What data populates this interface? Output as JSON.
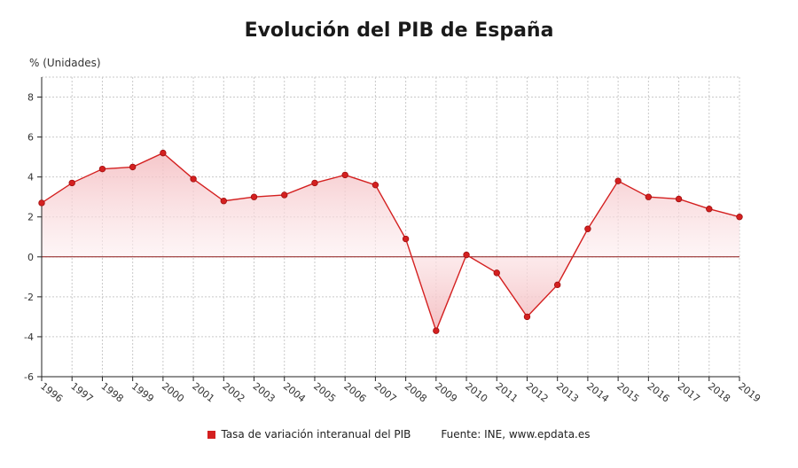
{
  "chart_data": {
    "type": "area",
    "title": "Evolución del PIB de España",
    "ylabel": "% (Unidades)",
    "ylim": [
      -6,
      9
    ],
    "yticks": [
      -6,
      -4,
      -2,
      0,
      2,
      4,
      6,
      8
    ],
    "grid": true,
    "legend_position": "bottom",
    "source": "Fuente: INE, www.epdata.es",
    "x": [
      "1996",
      "1997",
      "1998",
      "1999",
      "2000",
      "2001",
      "2002",
      "2003",
      "2004",
      "2005",
      "2006",
      "2007",
      "2008",
      "2009",
      "2010",
      "2011",
      "2012",
      "2013",
      "2014",
      "2015",
      "2016",
      "2017",
      "2018",
      "2019"
    ],
    "series": [
      {
        "name": "Tasa de variación interanual del PIB",
        "values": [
          2.7,
          3.7,
          4.4,
          4.5,
          5.2,
          3.9,
          2.8,
          3.0,
          3.1,
          3.7,
          4.1,
          3.6,
          0.9,
          -3.7,
          0.1,
          -0.8,
          -3.0,
          -1.4,
          1.4,
          3.8,
          3.0,
          2.9,
          2.4,
          2.0
        ],
        "color": "#d42020"
      }
    ]
  }
}
